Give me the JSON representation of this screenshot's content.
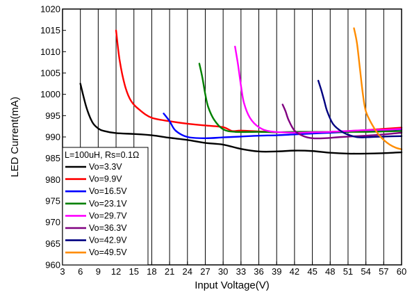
{
  "chart_data": {
    "type": "line",
    "title": "",
    "xlabel": "Input Voltage(V)",
    "ylabel": "LED Current(mA)",
    "xlim": [
      3,
      60
    ],
    "ylim": [
      960,
      1020
    ],
    "xticks": [
      3,
      6,
      9,
      12,
      15,
      18,
      21,
      24,
      27,
      30,
      33,
      36,
      39,
      42,
      45,
      48,
      51,
      54,
      57,
      60
    ],
    "yticks": [
      960,
      965,
      970,
      975,
      980,
      985,
      990,
      995,
      1000,
      1005,
      1010,
      1015,
      1020
    ],
    "grid": "vertical",
    "legend": {
      "placement": "bottom-left",
      "header": "L=100uH, Rs=0.1Ω"
    },
    "series": [
      {
        "name": "Vo=3.3V",
        "color": "#000000",
        "points": [
          [
            6,
            1002.5
          ],
          [
            7,
            997
          ],
          [
            8,
            993.5
          ],
          [
            9,
            992
          ],
          [
            10,
            991.4
          ],
          [
            12,
            990.9
          ],
          [
            15,
            990.7
          ],
          [
            18,
            990.4
          ],
          [
            21,
            989.8
          ],
          [
            24,
            989.3
          ],
          [
            27,
            988.6
          ],
          [
            30,
            988.2
          ],
          [
            33,
            987.2
          ],
          [
            36,
            986.6
          ],
          [
            39,
            986.6
          ],
          [
            42,
            986.8
          ],
          [
            45,
            986.7
          ],
          [
            48,
            986.3
          ],
          [
            51,
            986.1
          ],
          [
            54,
            986.1
          ],
          [
            57,
            986.2
          ],
          [
            60,
            986.4
          ]
        ]
      },
      {
        "name": "Vo=9.9V",
        "color": "#ff0000",
        "points": [
          [
            12,
            1015
          ],
          [
            12.6,
            1008
          ],
          [
            13.5,
            1002
          ],
          [
            14.5,
            998.5
          ],
          [
            16,
            996.3
          ],
          [
            18,
            994.5
          ],
          [
            21,
            993.7
          ],
          [
            24,
            993.1
          ],
          [
            27,
            992.7
          ],
          [
            30,
            992.3
          ],
          [
            31.5,
            991.4
          ],
          [
            33,
            991.5
          ],
          [
            36,
            991.3
          ],
          [
            39,
            991.1
          ],
          [
            42,
            991.1
          ],
          [
            45,
            991.1
          ],
          [
            48,
            991.2
          ],
          [
            51,
            991.4
          ],
          [
            54,
            991.6
          ],
          [
            57,
            991.9
          ],
          [
            60,
            992.2
          ]
        ]
      },
      {
        "name": "Vo=16.5V",
        "color": "#0000ff",
        "points": [
          [
            20,
            995.5
          ],
          [
            21,
            993.7
          ],
          [
            22,
            991.5
          ],
          [
            24,
            990
          ],
          [
            27,
            989.7
          ],
          [
            30,
            989.9
          ],
          [
            33,
            990.1
          ],
          [
            36,
            990.3
          ],
          [
            39,
            990.4
          ],
          [
            42,
            990.6
          ],
          [
            45,
            990.8
          ],
          [
            48,
            991
          ],
          [
            51,
            991.2
          ],
          [
            54,
            991.4
          ],
          [
            57,
            991.6
          ],
          [
            60,
            991.8
          ]
        ]
      },
      {
        "name": "Vo=23.1V",
        "color": "#008000",
        "points": [
          [
            26,
            1007.2
          ],
          [
            26.5,
            1004
          ],
          [
            27,
            1000
          ],
          [
            27.5,
            997
          ],
          [
            28.5,
            994
          ],
          [
            30,
            991.8
          ],
          [
            32,
            991.2
          ],
          [
            36,
            991.2
          ],
          [
            39,
            991.1
          ],
          [
            42,
            991.2
          ],
          [
            45,
            991.2
          ],
          [
            48,
            991.2
          ],
          [
            51,
            991.2
          ],
          [
            54,
            991.2
          ],
          [
            57,
            991.3
          ],
          [
            60,
            991.4
          ]
        ]
      },
      {
        "name": "Vo=29.7V",
        "color": "#ff00ff",
        "points": [
          [
            32,
            1011.2
          ],
          [
            32.5,
            1007
          ],
          [
            33,
            1002
          ],
          [
            33.5,
            998
          ],
          [
            34.5,
            994.5
          ],
          [
            36,
            992.3
          ],
          [
            38,
            991.3
          ],
          [
            42,
            991
          ],
          [
            45,
            991.1
          ],
          [
            48,
            991.2
          ],
          [
            51,
            991.4
          ],
          [
            54,
            991.6
          ],
          [
            57,
            991.7
          ],
          [
            60,
            991.9
          ]
        ]
      },
      {
        "name": "Vo=36.3V",
        "color": "#800080",
        "points": [
          [
            40,
            997.6
          ],
          [
            40.5,
            996
          ],
          [
            41,
            994
          ],
          [
            42,
            991.5
          ],
          [
            43.5,
            990.2
          ],
          [
            45,
            989.7
          ],
          [
            47,
            989.7
          ],
          [
            50,
            990
          ],
          [
            54,
            990.3
          ],
          [
            57,
            990.6
          ],
          [
            60,
            991
          ]
        ]
      },
      {
        "name": "Vo=42.9V",
        "color": "#000080",
        "points": [
          [
            46,
            1003.2
          ],
          [
            46.5,
            1001
          ],
          [
            47,
            998.5
          ],
          [
            47.5,
            996
          ],
          [
            48.5,
            993
          ],
          [
            50,
            991.2
          ],
          [
            51.5,
            990.3
          ],
          [
            53,
            989.9
          ],
          [
            55,
            990
          ],
          [
            57,
            990.1
          ],
          [
            60,
            990.2
          ]
        ]
      },
      {
        "name": "Vo=49.5V",
        "color": "#ff8c00",
        "points": [
          [
            52,
            1015.5
          ],
          [
            52.5,
            1012
          ],
          [
            53,
            1006
          ],
          [
            53.5,
            1000
          ],
          [
            54,
            996
          ],
          [
            55,
            993
          ],
          [
            56,
            990.8
          ],
          [
            57,
            989.3
          ],
          [
            58,
            988.2
          ],
          [
            59,
            987.5
          ],
          [
            60,
            987.1
          ]
        ]
      }
    ]
  }
}
